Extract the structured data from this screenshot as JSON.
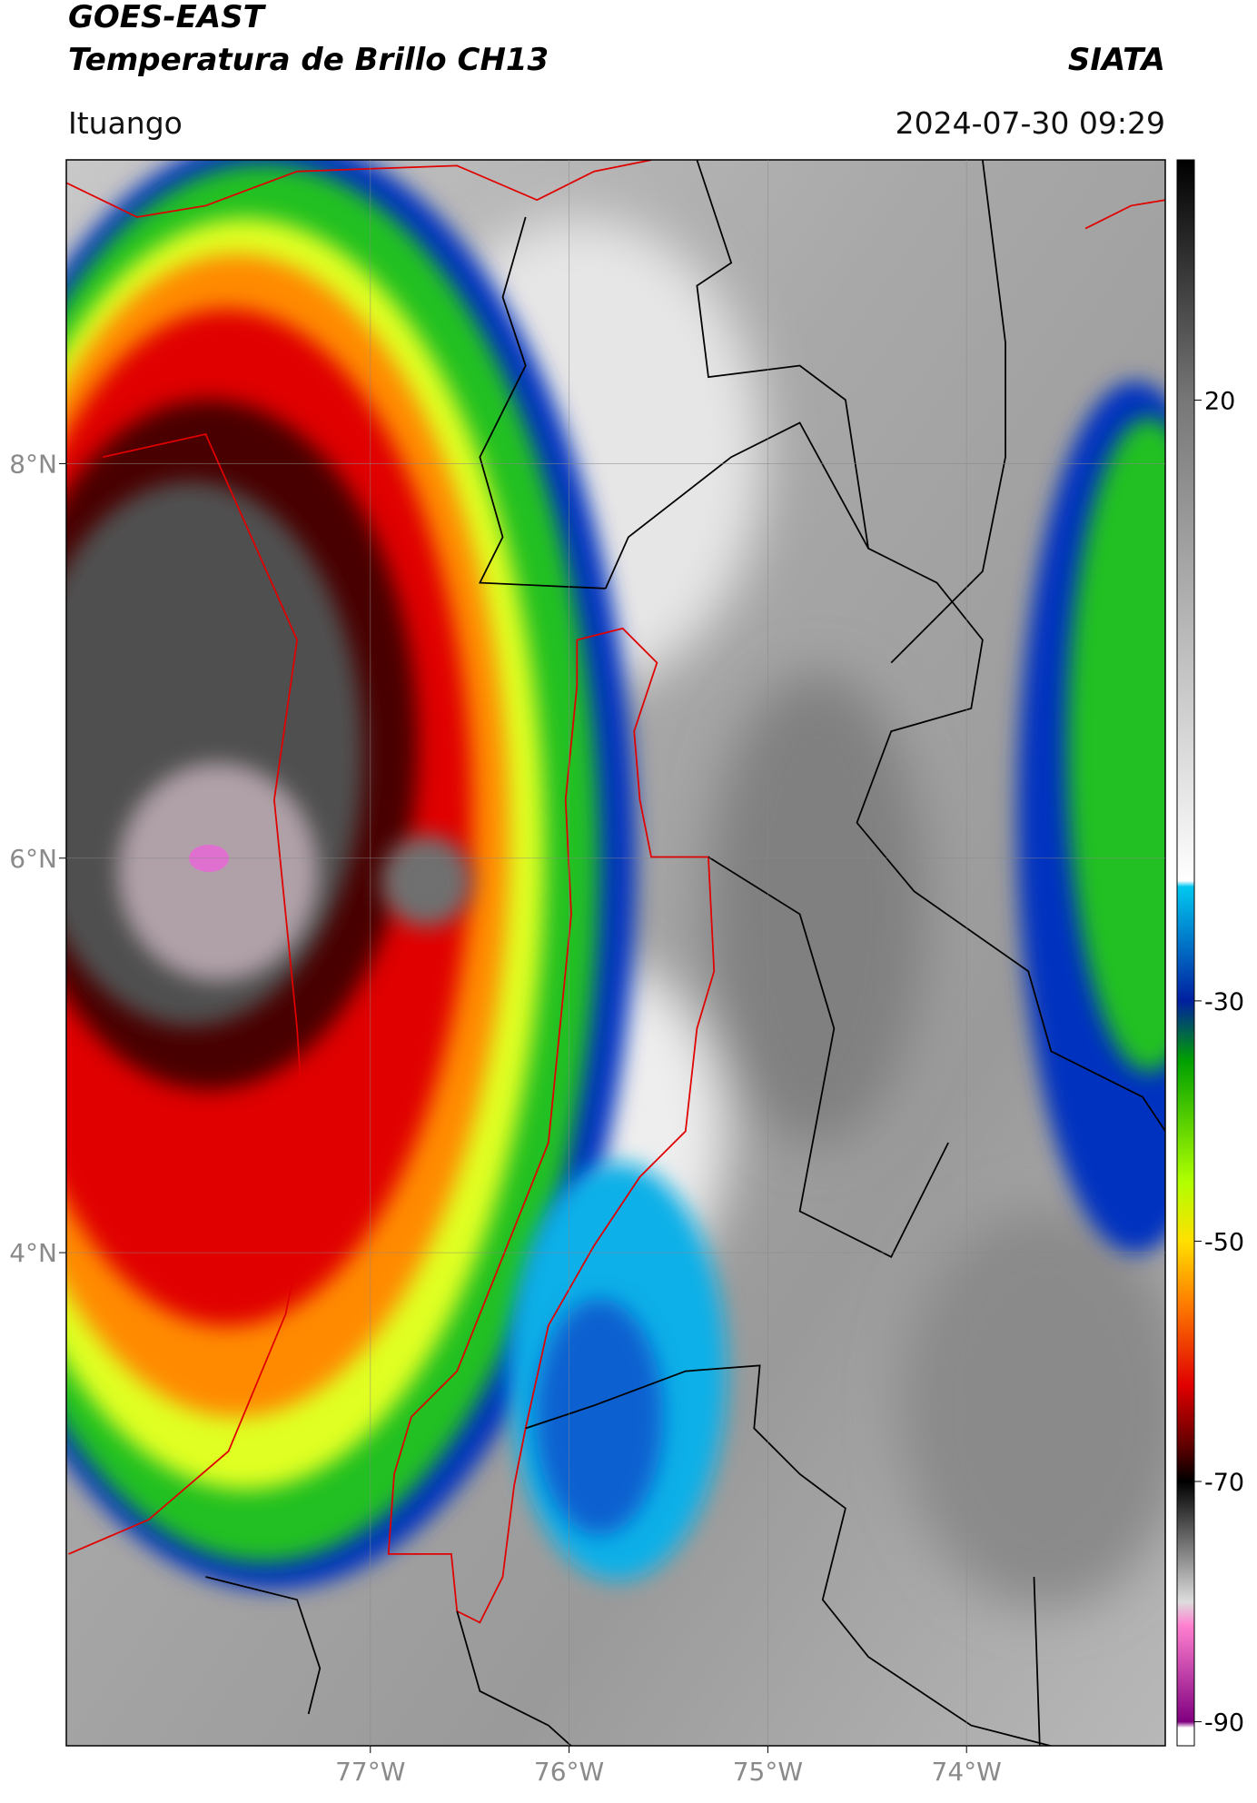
{
  "map": {
    "title": "GOES-EAST",
    "subtitle": "Temperatura de Brillo CH13",
    "source": "SIATA",
    "location": "Ituango",
    "datetime": "2024-07-30 09:29",
    "xlim": [
      -78.53,
      -73.0
    ],
    "ylim": [
      1.5,
      9.54
    ],
    "xticks": [
      {
        "value": -77,
        "label": "77°W"
      },
      {
        "value": -76,
        "label": "76°W"
      },
      {
        "value": -75,
        "label": "75°W"
      },
      {
        "value": -74,
        "label": "74°W"
      }
    ],
    "yticks": [
      {
        "value": 8,
        "label": "8°N"
      },
      {
        "value": 6,
        "label": "6°N"
      },
      {
        "value": 4,
        "label": "4°N"
      }
    ],
    "grid": true,
    "colorbar": {
      "lim": [
        -92,
        40
      ],
      "ticks": [
        20,
        -30,
        -50,
        -70,
        -90
      ],
      "colormap": [
        {
          "value": 40,
          "color": "#000000"
        },
        {
          "value": 20,
          "color": "#777777"
        },
        {
          "value": -20,
          "color": "#ffffff"
        },
        {
          "value": -20.5,
          "color": "#00c8f0"
        },
        {
          "value": -30,
          "color": "#0020a0"
        },
        {
          "value": -35,
          "color": "#00a000"
        },
        {
          "value": -45,
          "color": "#b0ff00"
        },
        {
          "value": -50,
          "color": "#ffe000"
        },
        {
          "value": -55,
          "color": "#ff8000"
        },
        {
          "value": -62,
          "color": "#e00000"
        },
        {
          "value": -67,
          "color": "#600000"
        },
        {
          "value": -70,
          "color": "#000000"
        },
        {
          "value": -80,
          "color": "#dddddd"
        },
        {
          "value": -82,
          "color": "#ff80d0"
        },
        {
          "value": -90,
          "color": "#800080"
        },
        {
          "value": -90.5,
          "color": "#ffffff"
        }
      ]
    }
  }
}
